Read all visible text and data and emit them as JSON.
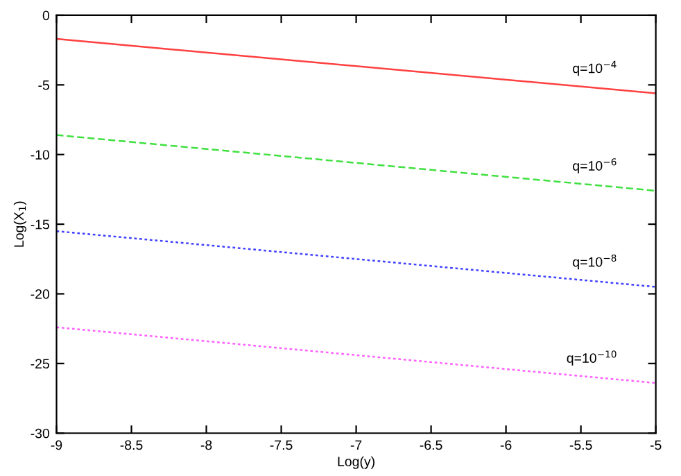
{
  "chart_data": {
    "type": "line",
    "xlabel": "Log(y)",
    "ylabel": "Log(X$_{1}$)",
    "x": [
      -9,
      -5
    ],
    "series": [
      {
        "name": "q=10$^{−4}$",
        "color": "#ff4040",
        "line_style": "solid",
        "values": [
          -1.7,
          -5.6
        ]
      },
      {
        "name": "q=10$^{−6}$",
        "color": "#40e040",
        "line_style": "dashed",
        "values": [
          -8.6,
          -12.6
        ]
      },
      {
        "name": "q=10$^{−8}$",
        "color": "#4040ff",
        "line_style": "dotted",
        "values": [
          -15.5,
          -19.5
        ]
      },
      {
        "name": "q=10$^{−10}$",
        "color": "#ff60ff",
        "line_style": "dotted",
        "values": [
          -22.4,
          -26.4
        ]
      }
    ],
    "xlim": [
      -9,
      -5
    ],
    "ylim": [
      -30,
      0
    ],
    "xticks": [
      -9,
      -8.5,
      -8,
      -7.5,
      -7,
      -6.5,
      -6,
      -5.5,
      -5
    ],
    "yticks": [
      -30,
      -25,
      -20,
      -15,
      -10,
      -5,
      0
    ],
    "grid": false,
    "legend": false,
    "marker": "none"
  }
}
